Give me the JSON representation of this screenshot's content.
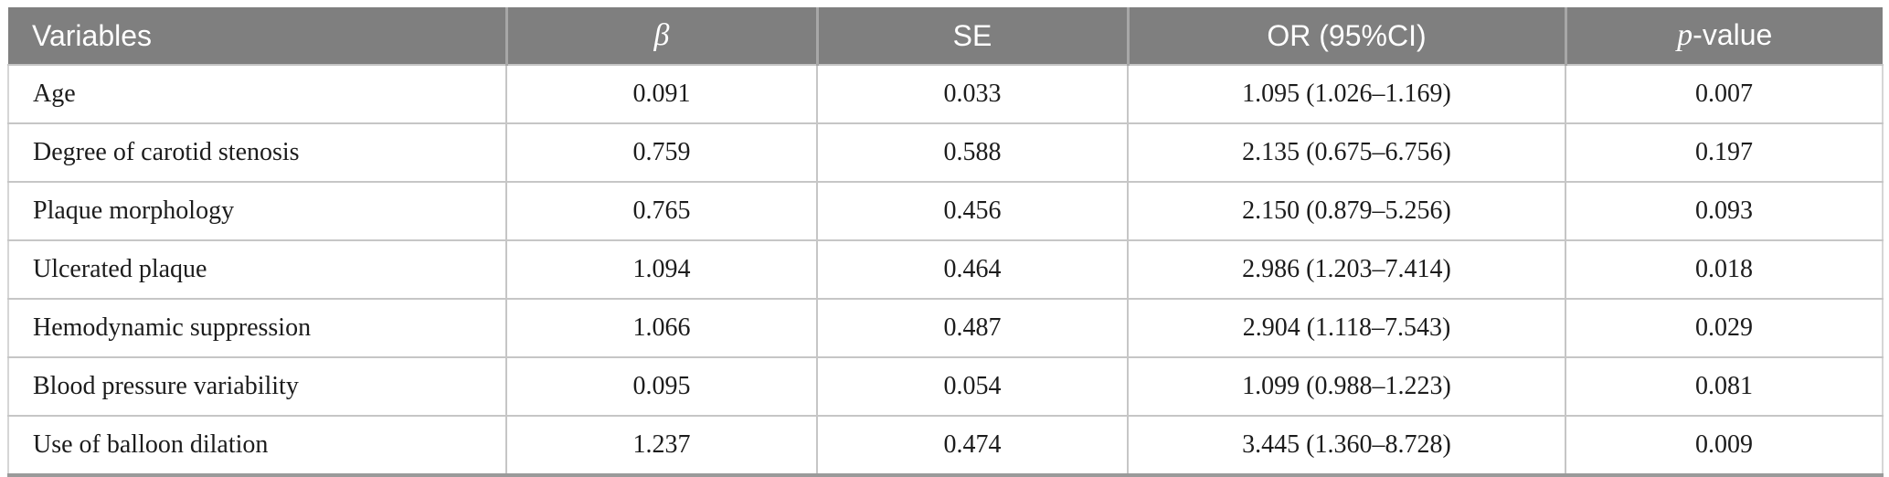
{
  "table": {
    "title_semantic": "Multivariate logistic regression results table",
    "header": {
      "variables": "Variables",
      "beta": "β",
      "se": "SE",
      "or_ci": "OR (95%CI)",
      "p_prefix": "p",
      "p_suffix": "-value"
    },
    "rows": [
      {
        "variable": "Age",
        "beta": "0.091",
        "se": "0.033",
        "or_ci": "1.095 (1.026–1.169)",
        "p": "0.007"
      },
      {
        "variable": "Degree of carotid stenosis",
        "beta": "0.759",
        "se": "0.588",
        "or_ci": "2.135 (0.675–6.756)",
        "p": "0.197"
      },
      {
        "variable": "Plaque morphology",
        "beta": "0.765",
        "se": "0.456",
        "or_ci": "2.150 (0.879–5.256)",
        "p": "0.093"
      },
      {
        "variable": "Ulcerated plaque",
        "beta": "1.094",
        "se": "0.464",
        "or_ci": "2.986 (1.203–7.414)",
        "p": "0.018"
      },
      {
        "variable": "Hemodynamic suppression",
        "beta": "1.066",
        "se": "0.487",
        "or_ci": "2.904 (1.118–7.543)",
        "p": "0.029"
      },
      {
        "variable": "Blood pressure variability",
        "beta": "0.095",
        "se": "0.054",
        "or_ci": "1.099 (0.988–1.223)",
        "p": "0.081"
      },
      {
        "variable": "Use of balloon dilation",
        "beta": "1.237",
        "se": "0.474",
        "or_ci": "3.445 (1.360–8.728)",
        "p": "0.009"
      }
    ],
    "colors": {
      "header_bg": "#7f7f7f",
      "header_text": "#ffffff",
      "header_divider": "#a7a7a7",
      "body_border": "#c6c6c6",
      "bottom_border": "#9a9a9a",
      "body_text": "#1c1c1c"
    }
  }
}
